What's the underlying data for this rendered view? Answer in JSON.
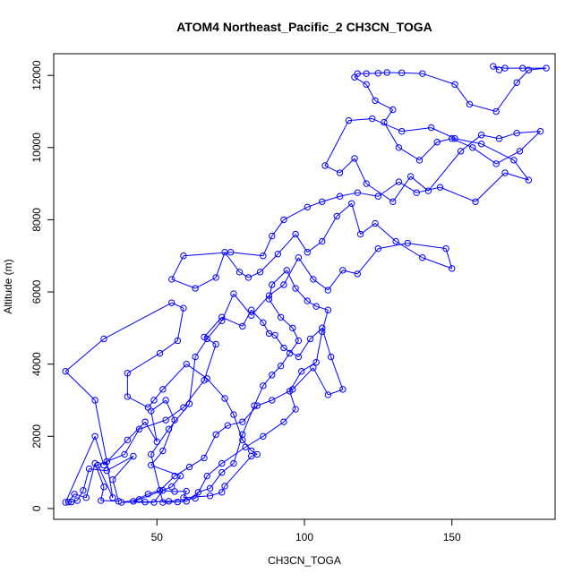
{
  "chart_data": {
    "type": "scatter",
    "title": "ATOM4 Northeast_Pacific_2 CH3CN_TOGA",
    "xlabel": "CH3CN_TOGA",
    "ylabel": "Altitude (m)",
    "xlim": [
      15,
      185
    ],
    "ylim": [
      -300,
      12600
    ],
    "x_ticks": [
      50,
      100,
      150
    ],
    "x_tick_labels": [
      "50",
      "100",
      "150"
    ],
    "y_ticks": [
      0,
      2000,
      4000,
      6000,
      8000,
      10000,
      12000
    ],
    "y_tick_labels": [
      "0",
      "2000",
      "4000",
      "6000",
      "8000",
      "10000",
      "12000"
    ],
    "grid": false,
    "legend": "none",
    "connected": true,
    "color": "#0000ff",
    "series": [
      {
        "points": [
          [
            20,
            180
          ],
          [
            22,
            400
          ],
          [
            26,
            300
          ],
          [
            29,
            1250
          ],
          [
            32,
            600
          ],
          [
            31,
            220
          ],
          [
            37,
            200
          ],
          [
            35,
            800
          ],
          [
            42,
            1450
          ],
          [
            33,
            1050
          ],
          [
            27,
            1100
          ],
          [
            25,
            500
          ],
          [
            23,
            220
          ],
          [
            21,
            180
          ],
          [
            19,
            170
          ],
          [
            29,
            2000
          ],
          [
            32,
            1200
          ],
          [
            40,
            1900
          ],
          [
            46,
            2400
          ],
          [
            50,
            1850
          ],
          [
            48,
            2700
          ],
          [
            53,
            3000
          ],
          [
            56,
            2450
          ],
          [
            52,
            1600
          ],
          [
            48,
            1200
          ],
          [
            58,
            900
          ],
          [
            55,
            600
          ],
          [
            44,
            250
          ],
          [
            38,
            170
          ],
          [
            49,
            170
          ],
          [
            52,
            500
          ],
          [
            56,
            470
          ],
          [
            60,
            480
          ],
          [
            59,
            300
          ],
          [
            68,
            350
          ],
          [
            72,
            450
          ],
          [
            73,
            620
          ],
          [
            82,
            1450
          ],
          [
            84,
            1500
          ],
          [
            82,
            1600
          ],
          [
            79,
            1900
          ],
          [
            76,
            2600
          ],
          [
            73,
            3050
          ],
          [
            67,
            3600
          ],
          [
            60,
            4000
          ],
          [
            52,
            3300
          ],
          [
            49,
            3000
          ],
          [
            47,
            2800
          ],
          [
            40,
            3100
          ],
          [
            40,
            3750
          ],
          [
            51,
            4300
          ],
          [
            57,
            4650
          ],
          [
            59,
            5550
          ],
          [
            55,
            5700
          ],
          [
            32,
            4700
          ],
          [
            19,
            3800
          ],
          [
            29,
            3000
          ],
          [
            33,
            1300
          ],
          [
            35,
            300
          ],
          [
            30,
            1200
          ],
          [
            39,
            1500
          ],
          [
            44,
            2200
          ],
          [
            53,
            2450
          ],
          [
            59,
            2800
          ],
          [
            66,
            3550
          ],
          [
            70,
            4550
          ],
          [
            66,
            4750
          ],
          [
            72,
            5300
          ],
          [
            79,
            5050
          ],
          [
            82,
            5500
          ],
          [
            86,
            5150
          ],
          [
            88,
            4850
          ],
          [
            90,
            4800
          ],
          [
            93,
            4450
          ],
          [
            98,
            4200
          ],
          [
            102,
            4700
          ],
          [
            106,
            5000
          ],
          [
            109,
            4200
          ],
          [
            113,
            3300
          ],
          [
            108,
            3150
          ],
          [
            103,
            3900
          ],
          [
            96,
            3300
          ],
          [
            89,
            3000
          ],
          [
            84,
            2850
          ],
          [
            79,
            2400
          ],
          [
            74,
            2300
          ],
          [
            70,
            2050
          ],
          [
            66,
            1400
          ],
          [
            61,
            1150
          ],
          [
            56,
            900
          ],
          [
            51,
            500
          ],
          [
            47,
            400
          ],
          [
            42,
            200
          ],
          [
            46,
            180
          ],
          [
            54,
            200
          ],
          [
            63,
            280
          ],
          [
            67,
            900
          ],
          [
            72,
            1250
          ],
          [
            80,
            1700
          ],
          [
            86,
            2000
          ],
          [
            93,
            2400
          ],
          [
            97,
            2750
          ],
          [
            95,
            3250
          ],
          [
            99,
            3800
          ],
          [
            104,
            4050
          ],
          [
            106,
            4900
          ],
          [
            108,
            5500
          ],
          [
            104,
            5600
          ],
          [
            101,
            5750
          ],
          [
            97,
            6100
          ],
          [
            94,
            6600
          ],
          [
            89,
            6200
          ],
          [
            88,
            5800
          ],
          [
            92,
            5300
          ],
          [
            96,
            5000
          ],
          [
            98,
            4650
          ],
          [
            95,
            4300
          ],
          [
            92,
            3950
          ],
          [
            89,
            3700
          ],
          [
            86,
            3400
          ],
          [
            83,
            2850
          ],
          [
            79,
            2050
          ],
          [
            76,
            1250
          ],
          [
            72,
            1000
          ],
          [
            68,
            560
          ],
          [
            64,
            450
          ],
          [
            60,
            200
          ],
          [
            57,
            180
          ],
          [
            52,
            170
          ],
          [
            48,
            1500
          ],
          [
            54,
            2200
          ],
          [
            61,
            2900
          ],
          [
            63,
            4200
          ],
          [
            67,
            4700
          ],
          [
            72,
            5200
          ],
          [
            76,
            5950
          ],
          [
            82,
            5350
          ],
          [
            88,
            5900
          ],
          [
            93,
            6200
          ],
          [
            98,
            6950
          ],
          [
            103,
            6350
          ],
          [
            108,
            6050
          ],
          [
            113,
            6600
          ],
          [
            118,
            6500
          ],
          [
            125,
            7200
          ],
          [
            135,
            7350
          ],
          [
            148,
            7200
          ],
          [
            150,
            6650
          ],
          [
            140,
            6950
          ],
          [
            131,
            7400
          ],
          [
            124,
            7900
          ],
          [
            119,
            7600
          ],
          [
            116,
            8450
          ],
          [
            111,
            8100
          ],
          [
            106,
            7400
          ],
          [
            101,
            7100
          ],
          [
            97,
            7600
          ],
          [
            91,
            7050
          ],
          [
            85,
            6550
          ],
          [
            81,
            6400
          ],
          [
            78,
            6550
          ],
          [
            73,
            7100
          ],
          [
            70,
            6400
          ],
          [
            63,
            6100
          ],
          [
            55,
            6350
          ],
          [
            59,
            7000
          ],
          [
            75,
            7100
          ],
          [
            86,
            7000
          ],
          [
            89,
            7550
          ],
          [
            93,
            8000
          ],
          [
            101,
            8350
          ],
          [
            106,
            8500
          ],
          [
            112,
            8650
          ],
          [
            118,
            8750
          ],
          [
            125,
            8650
          ],
          [
            132,
            9050
          ],
          [
            138,
            8750
          ],
          [
            146,
            8900
          ],
          [
            158,
            8500
          ],
          [
            168,
            9300
          ],
          [
            176,
            9100
          ],
          [
            171,
            9650
          ],
          [
            160,
            10100
          ],
          [
            151,
            10250
          ],
          [
            143,
            10550
          ],
          [
            133,
            10450
          ],
          [
            123,
            10800
          ],
          [
            115,
            10750
          ],
          [
            107,
            9500
          ],
          [
            112,
            9300
          ],
          [
            117,
            9700
          ],
          [
            121,
            9000
          ],
          [
            130,
            8500
          ],
          [
            136,
            9200
          ],
          [
            142,
            8800
          ],
          [
            153,
            9900
          ],
          [
            160,
            10350
          ],
          [
            166,
            10250
          ],
          [
            172,
            10400
          ],
          [
            180,
            10450
          ],
          [
            173,
            9900
          ],
          [
            165,
            9550
          ],
          [
            157,
            10000
          ],
          [
            150,
            10250
          ],
          [
            145,
            10150
          ],
          [
            139,
            9650
          ],
          [
            132,
            10000
          ],
          [
            127,
            10700
          ],
          [
            130,
            11050
          ],
          [
            124,
            11300
          ],
          [
            121,
            11750
          ],
          [
            117,
            11950
          ],
          [
            118,
            12050
          ],
          [
            121,
            12050
          ],
          [
            125,
            12060
          ],
          [
            128,
            12080
          ],
          [
            133,
            12070
          ],
          [
            140,
            12050
          ],
          [
            151,
            11750
          ],
          [
            156,
            11200
          ],
          [
            165,
            11000
          ],
          [
            172,
            11800
          ],
          [
            176,
            12150
          ],
          [
            182,
            12200
          ],
          [
            174,
            12200
          ],
          [
            168,
            12200
          ],
          [
            164,
            12250
          ],
          [
            166,
            12150
          ]
        ]
      }
    ]
  }
}
